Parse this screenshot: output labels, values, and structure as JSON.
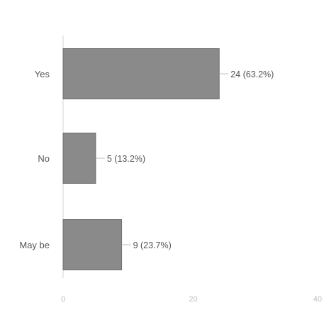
{
  "chart_data": {
    "type": "bar",
    "orientation": "horizontal",
    "categories": [
      "Yes",
      "No",
      "May be"
    ],
    "values": [
      24,
      5,
      9
    ],
    "data_labels": [
      "24 (63.2%)",
      "5 (13.2%)",
      "9 (23.7%)"
    ],
    "xlim": [
      0,
      40
    ],
    "xticks": [
      "0",
      "20",
      "40"
    ],
    "grid": false,
    "legend": "none"
  },
  "colors": {
    "bar": "#8a8a8a",
    "bar_edge": "#6f6f6f",
    "axis": "#d6d6d6",
    "leader": "#bdbdbd"
  }
}
